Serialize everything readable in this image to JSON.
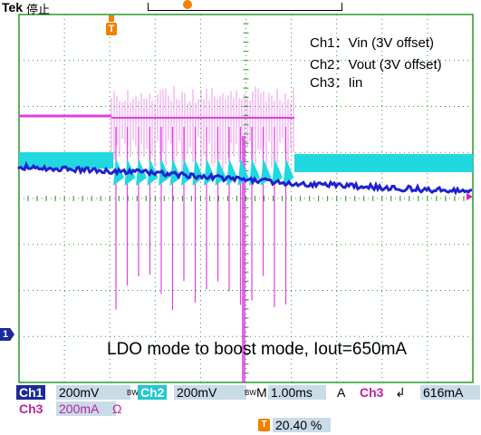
{
  "header": {
    "brand": "Tek",
    "run_state": "停止",
    "trigger_marker": "T"
  },
  "legend": {
    "ch1": "Ch1：Vin (3V offset)",
    "ch2": "Ch2：Vout (3V offset)",
    "ch3": "Ch3：Iin"
  },
  "annotation": "LDO mode to boost mode, Iout=650mA",
  "markers": {
    "ch1_ground": "1"
  },
  "status_bar": {
    "ch1_label": "Ch1",
    "ch1_scale": "200mV",
    "bw1": "BW",
    "ch2_label": "Ch2",
    "ch2_scale": "200mV",
    "bw2": "BW",
    "time_label": "M",
    "time_scale": "1.00ms",
    "coupling": "A",
    "trig_source": "Ch3",
    "trig_slope": "↲",
    "trig_level": "616mA",
    "ch3_label": "Ch3",
    "ch3_scale": "200mA",
    "ohm": "Ω",
    "trig_pos_marker": "T",
    "trig_position": "20.40 %"
  },
  "colors": {
    "screen_bg": "#ffffff",
    "grid": "#2a9a2a",
    "ch1": "#e040e0",
    "ch2": "#20d8e0",
    "ch3": "#2020d0",
    "trigger": "#f08000",
    "status_bg": "#c8dce8"
  },
  "chart_data": {
    "type": "line",
    "title": "",
    "xlabel": "",
    "ylabel": "",
    "series": [
      {
        "name": "Ch1",
        "description_note": "",
        "values": []
      },
      {
        "name": "Ch2",
        "values": []
      },
      {
        "name": "Ch3",
        "values": []
      }
    ]
  }
}
